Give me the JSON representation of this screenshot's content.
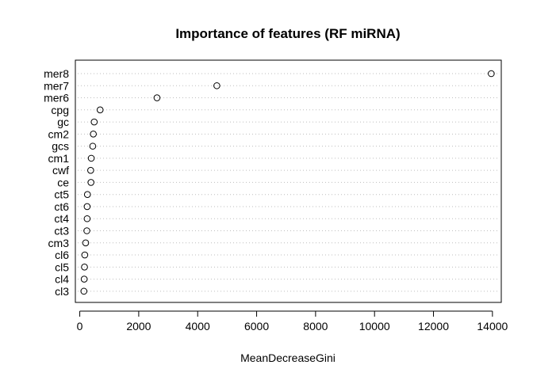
{
  "chart_data": {
    "type": "scatter",
    "title": "Importance of features (RF miRNA)",
    "xlabel": "MeanDecreaseGini",
    "ylabel": "",
    "xlim": [
      -150,
      14300
    ],
    "xticks": [
      0,
      2000,
      4000,
      6000,
      8000,
      10000,
      12000,
      14000
    ],
    "xtick_labels": [
      "0",
      "2000",
      "4000",
      "6000",
      "8000",
      "10000",
      "12000",
      "14000"
    ],
    "grid": "dotted horizontal guide per category",
    "legend": "none",
    "categories": [
      "mer8",
      "mer7",
      "mer6",
      "cpg",
      "gc",
      "cm2",
      "gcs",
      "cm1",
      "cwf",
      "ce",
      "ct5",
      "ct6",
      "ct4",
      "ct3",
      "cm3",
      "cl6",
      "cl5",
      "cl4",
      "cl3"
    ],
    "values": [
      13960,
      4650,
      2620,
      690,
      490,
      460,
      440,
      390,
      370,
      380,
      260,
      250,
      250,
      240,
      200,
      170,
      160,
      150,
      140
    ]
  }
}
